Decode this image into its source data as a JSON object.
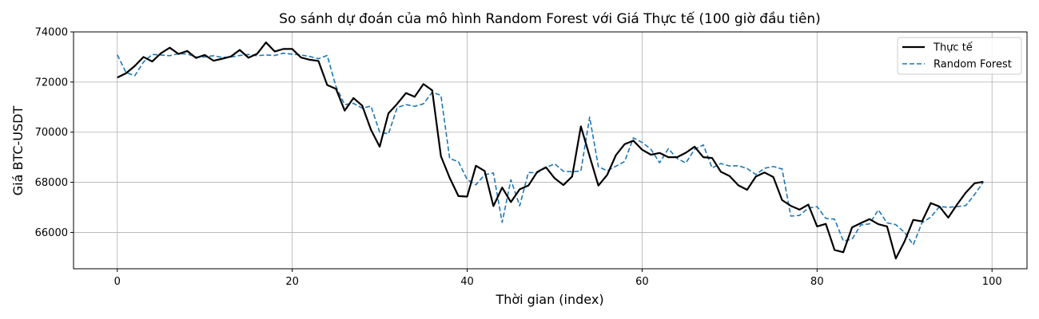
{
  "chart_data": {
    "type": "line",
    "title": "So sánh dự đoán của mô hình Random Forest với Giá Thực tế (100 giờ đầu tiên)",
    "xlabel": "Thời gian (index)",
    "ylabel": "Giá BTC-USDT",
    "xlim": [
      -5,
      104
    ],
    "ylim": [
      64550,
      74000
    ],
    "xticks": [
      0,
      20,
      40,
      60,
      80,
      100
    ],
    "yticks": [
      66000,
      68000,
      70000,
      72000,
      74000
    ],
    "grid": true,
    "legend_position": "top-right",
    "series": [
      {
        "name": "Thực tế",
        "color": "#000000",
        "style": "solid",
        "values": [
          72180,
          72350,
          72640,
          73000,
          72820,
          73150,
          73370,
          73120,
          73240,
          72960,
          73080,
          72850,
          72930,
          73020,
          73280,
          72970,
          73130,
          73580,
          73220,
          73320,
          73320,
          72980,
          72890,
          72840,
          71880,
          71730,
          70860,
          71360,
          71060,
          70100,
          69420,
          70750,
          71130,
          71560,
          71410,
          71920,
          71670,
          69040,
          68180,
          67450,
          67430,
          68660,
          68450,
          67050,
          67790,
          67210,
          67720,
          67870,
          68410,
          68600,
          68160,
          67890,
          68230,
          70230,
          69040,
          67870,
          68290,
          69080,
          69520,
          69660,
          69300,
          69100,
          69170,
          69000,
          69000,
          69180,
          69420,
          69000,
          68970,
          68420,
          68250,
          67880,
          67700,
          68230,
          68390,
          68210,
          67290,
          67060,
          66910,
          67110,
          66240,
          66340,
          65300,
          65210,
          66200,
          66370,
          66530,
          66330,
          66240,
          64960,
          65640,
          66500,
          66440,
          67170,
          67030,
          66590,
          67110,
          67590,
          67960,
          68020
        ]
      },
      {
        "name": "Random Forest",
        "color": "#1f77b4",
        "style": "dashed",
        "values": [
          73090,
          72380,
          72250,
          72800,
          73100,
          73080,
          73050,
          73130,
          73120,
          73000,
          73000,
          73050,
          72980,
          73000,
          73060,
          73100,
          73050,
          73080,
          73060,
          73150,
          73110,
          73080,
          73020,
          72930,
          73060,
          71820,
          71100,
          71150,
          70960,
          71040,
          70000,
          69930,
          70980,
          71100,
          71030,
          71130,
          71590,
          71470,
          68950,
          68820,
          68110,
          67900,
          68300,
          68370,
          66400,
          68100,
          67060,
          68390,
          68380,
          68580,
          68740,
          68440,
          68420,
          68450,
          70600,
          68620,
          68460,
          68640,
          68830,
          69770,
          69590,
          69320,
          68780,
          69340,
          68950,
          68770,
          69320,
          69490,
          68570,
          68750,
          68650,
          68660,
          68550,
          68310,
          68560,
          68630,
          68530,
          66650,
          66680,
          66970,
          67030,
          66560,
          66530,
          65660,
          65730,
          66300,
          66340,
          66900,
          66380,
          66310,
          66000,
          65510,
          66390,
          66610,
          67030,
          67000,
          67030,
          67070,
          67510,
          68010
        ]
      }
    ]
  }
}
